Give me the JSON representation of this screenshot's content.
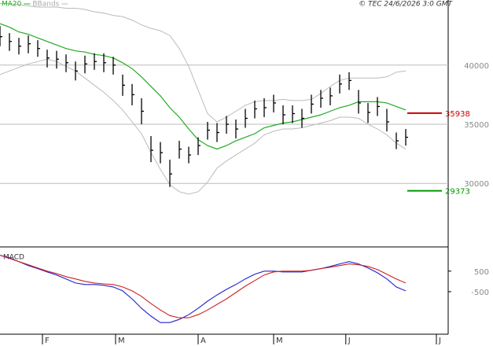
{
  "source": "© TEC 24/6/2026 3:0 GMT",
  "chart_data": [
    {
      "type": "ohlc",
      "x": [
        0,
        2,
        4,
        6,
        8,
        10,
        12,
        14,
        16,
        18,
        20,
        22,
        24,
        26,
        28,
        30,
        32,
        34,
        36,
        38,
        40,
        42,
        44,
        46,
        48,
        50,
        52,
        54,
        56,
        58,
        60,
        62,
        64,
        66,
        68,
        70,
        72,
        74,
        76,
        78,
        80,
        82,
        84,
        86
      ],
      "high": [
        43300,
        42700,
        42300,
        42500,
        42100,
        41300,
        41200,
        40900,
        40300,
        40800,
        41000,
        41000,
        40700,
        39200,
        38400,
        37200,
        34000,
        33500,
        32000,
        33600,
        33100,
        33900,
        35200,
        35100,
        35700,
        35400,
        36300,
        37000,
        37200,
        37500,
        36600,
        36600,
        36300,
        37500,
        37900,
        38100,
        39200,
        39400,
        37900,
        36800,
        37300,
        36300,
        34300,
        34600
      ],
      "low": [
        41600,
        41200,
        40900,
        41000,
        40700,
        39800,
        39700,
        39400,
        38700,
        39300,
        39600,
        39400,
        39200,
        37400,
        36600,
        35000,
        31800,
        31700,
        29700,
        32100,
        31700,
        32400,
        33700,
        33500,
        34200,
        33800,
        34700,
        35500,
        35600,
        36000,
        35000,
        35100,
        34700,
        35900,
        36400,
        36600,
        37600,
        37900,
        35900,
        35100,
        35700,
        34400,
        32900,
        33200
      ],
      "close": [
        42400,
        42000,
        41600,
        41800,
        41400,
        40600,
        40500,
        40200,
        39500,
        40100,
        40300,
        40200,
        40000,
        38300,
        37500,
        36100,
        32800,
        32600,
        30800,
        32900,
        32400,
        33200,
        34500,
        34300,
        35000,
        34600,
        35500,
        36300,
        36400,
        36800,
        35800,
        35900,
        35500,
        36700,
        37200,
        37400,
        38400,
        38700,
        36800,
        36000,
        36500,
        35200,
        33600,
        33900
      ],
      "bar_color": "#000000",
      "series": [
        {
          "name": "MA20",
          "color": "#22aa22",
          "values": [
            43500,
            43200,
            42800,
            42600,
            42300,
            42000,
            41700,
            41400,
            41200,
            41100,
            40900,
            40800,
            40600,
            40200,
            39700,
            39000,
            38200,
            37400,
            36400,
            35600,
            34600,
            33700,
            33200,
            32900,
            33200,
            33600,
            33900,
            34200,
            34700,
            34900,
            35100,
            35200,
            35400,
            35600,
            35800,
            36100,
            36400,
            36600,
            36900,
            36900,
            36900,
            36800,
            36500,
            36200
          ]
        },
        {
          "name": "BBands",
          "color": "#bbbbbb",
          "upper": [
            45200,
            45200,
            45100,
            45000,
            44900,
            44900,
            44900,
            44800,
            44800,
            44700,
            44500,
            44400,
            44200,
            44100,
            43800,
            43400,
            43100,
            42900,
            42500,
            41400,
            39900,
            37900,
            35900,
            35200,
            35600,
            36100,
            36600,
            36900,
            37000,
            37000,
            37100,
            37000,
            37000,
            37100,
            37600,
            38200,
            38700,
            38900,
            38900,
            38900,
            38900,
            39000,
            39400,
            39500
          ],
          "lower": [
            39200,
            39500,
            39800,
            40100,
            40300,
            40500,
            40300,
            39900,
            39500,
            38900,
            38300,
            37700,
            37000,
            36200,
            35200,
            34200,
            32600,
            31200,
            29900,
            29300,
            29100,
            29300,
            30100,
            31300,
            31900,
            32400,
            32900,
            33400,
            34100,
            34400,
            34600,
            34600,
            34700,
            34900,
            35100,
            35300,
            35600,
            35600,
            35500,
            35000,
            34600,
            34100,
            33400,
            32900
          ]
        }
      ],
      "levels": [
        {
          "value": 35938,
          "color": "#cc0000"
        },
        {
          "value": 29373,
          "color": "#009900"
        }
      ],
      "xlim": [
        0,
        95
      ],
      "ylim": [
        24700,
        45500
      ],
      "yticks": [
        40000,
        35000,
        30000
      ],
      "grid": true
    },
    {
      "type": "line",
      "title": "MACD",
      "x": [
        0,
        2,
        4,
        6,
        8,
        10,
        12,
        14,
        16,
        18,
        20,
        22,
        24,
        26,
        28,
        30,
        32,
        34,
        36,
        38,
        40,
        42,
        44,
        46,
        48,
        50,
        52,
        54,
        56,
        58,
        60,
        62,
        64,
        66,
        68,
        70,
        72,
        74,
        76,
        78,
        80,
        82,
        84,
        86
      ],
      "series": [
        {
          "color": "#2222cc",
          "values": [
            1270,
            1150,
            960,
            770,
            620,
            460,
            310,
            120,
            -80,
            -150,
            -150,
            -190,
            -270,
            -460,
            -850,
            -1310,
            -1690,
            -2000,
            -2000,
            -1850,
            -1620,
            -1310,
            -960,
            -660,
            -390,
            -150,
            120,
            350,
            500,
            500,
            460,
            460,
            460,
            540,
            620,
            730,
            850,
            960,
            850,
            650,
            420,
            120,
            -270,
            -460
          ]
        },
        {
          "color": "#cc2222",
          "values": [
            1270,
            1120,
            960,
            810,
            650,
            500,
            380,
            230,
            120,
            0,
            -80,
            -120,
            -150,
            -270,
            -460,
            -730,
            -1080,
            -1390,
            -1660,
            -1770,
            -1770,
            -1620,
            -1390,
            -1120,
            -850,
            -540,
            -230,
            40,
            310,
            460,
            500,
            500,
            500,
            540,
            620,
            690,
            770,
            850,
            810,
            730,
            580,
            350,
            120,
            -80
          ]
        }
      ],
      "xlim": [
        0,
        95
      ],
      "ylim": [
        -2300,
        1600
      ],
      "yticks": [
        500,
        -500
      ],
      "xticks": [
        {
          "value": 9,
          "label": "F"
        },
        {
          "value": 24.5,
          "label": "M"
        },
        {
          "value": 42,
          "label": "A"
        },
        {
          "value": 58,
          "label": "M"
        },
        {
          "value": 73.3,
          "label": "J"
        },
        {
          "value": 92.5,
          "label": "J"
        }
      ]
    }
  ]
}
